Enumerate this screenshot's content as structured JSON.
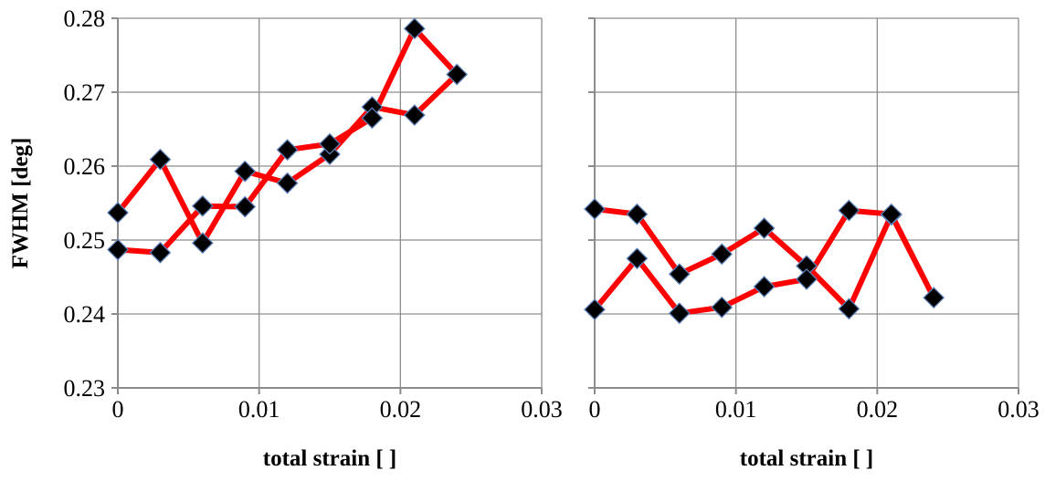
{
  "chart_data": [
    {
      "type": "line",
      "xlabel": "total strain [ ]",
      "ylabel": "FWHM [deg]",
      "xlim": [
        0,
        0.03
      ],
      "ylim": [
        0.23,
        0.28
      ],
      "xticks": [
        "0",
        "0.01",
        "0.02",
        "0.03"
      ],
      "yticks": [
        "0.23",
        "0.24",
        "0.25",
        "0.26",
        "0.27",
        "0.28"
      ],
      "grid": true,
      "series": [
        {
          "color": "#ff0000",
          "marker": "diamond",
          "points": [
            [
              0,
              0.2537
            ],
            [
              0.003,
              0.2609
            ],
            [
              0.006,
              0.2496
            ],
            [
              0.009,
              0.2593
            ],
            [
              0.012,
              0.2577
            ],
            [
              0.015,
              0.2616
            ],
            [
              0.018,
              0.268
            ],
            [
              0.021,
              0.2669
            ],
            [
              0.024,
              0.2724
            ],
            [
              0.021,
              0.2786
            ],
            [
              0.018,
              0.2665
            ],
            [
              0.015,
              0.263
            ],
            [
              0.012,
              0.2622
            ],
            [
              0.009,
              0.2545
            ],
            [
              0.006,
              0.2546
            ],
            [
              0.003,
              0.2483
            ],
            [
              0,
              0.2487
            ]
          ]
        }
      ]
    },
    {
      "type": "line",
      "xlabel": "total strain [ ]",
      "ylabel": "",
      "xlim": [
        0,
        0.03
      ],
      "ylim": [
        0.23,
        0.28
      ],
      "xticks": [
        "0",
        "0.01",
        "0.02",
        "0.03"
      ],
      "yticks": [],
      "grid": true,
      "series": [
        {
          "color": "#ff0000",
          "marker": "diamond",
          "points": [
            [
              0,
              0.2542
            ],
            [
              0.003,
              0.2535
            ],
            [
              0.006,
              0.2454
            ],
            [
              0.009,
              0.2481
            ],
            [
              0.012,
              0.2516
            ],
            [
              0.015,
              0.2465
            ],
            [
              0.018,
              0.2407
            ],
            [
              0.021,
              0.2534
            ],
            [
              0.024,
              0.2422
            ],
            [
              0.021,
              0.2535
            ],
            [
              0.018,
              0.254
            ],
            [
              0.015,
              0.2447
            ],
            [
              0.012,
              0.2437
            ],
            [
              0.009,
              0.2409
            ],
            [
              0.006,
              0.2401
            ],
            [
              0.003,
              0.2475
            ],
            [
              0,
              0.2406
            ]
          ]
        }
      ]
    }
  ]
}
